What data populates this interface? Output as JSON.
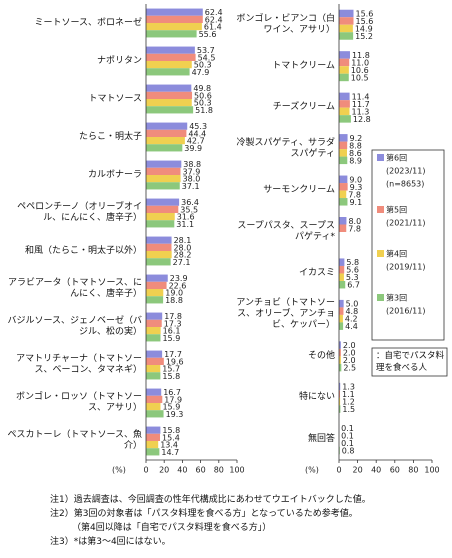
{
  "chart_data": [
    {
      "type": "bar",
      "orientation": "horizontal",
      "xlabel": "(%)",
      "xlim": [
        0,
        100
      ],
      "xticks": [
        0,
        20,
        40,
        60,
        80,
        100
      ],
      "categories": [
        "ミートソース、ボロネーゼ",
        "ナポリタン",
        "トマトソース",
        "たらこ・明太子",
        "カルボナーラ",
        "ペペロンチーノ（オリーブオイル、にんにく、唐辛子）",
        "和風（たらこ・明太子以外）",
        "アラビアータ（トマトソース、にんにく、唐辛子）",
        "バジルソース、ジェノベーゼ（バジル、松の実）",
        "アマトリチャーナ（トマトソース、ベーコン、タマネギ）",
        "ボンゴレ・ロッソ（トマトソース、アサリ）",
        "ペスカトーレ（トマトソース、魚介）"
      ],
      "series": [
        {
          "color": "#8c8cdc",
          "values": [
            62.4,
            53.7,
            49.8,
            45.3,
            38.8,
            36.4,
            28.1,
            23.9,
            17.8,
            17.7,
            16.7,
            15.8
          ],
          "value_labels": [
            "62.4",
            "53.7",
            "49.8",
            "45.3",
            "38.8",
            "36.4",
            "28.1",
            "23.9",
            "17.8",
            "17.7",
            "16.7",
            "15.8"
          ]
        },
        {
          "color": "#f08c7c",
          "values": [
            62.4,
            54.5,
            50.6,
            44.4,
            37.9,
            35.5,
            28.0,
            22.6,
            17.3,
            19.6,
            17.9,
            15.4
          ],
          "value_labels": [
            "62.4",
            "54.5",
            "50.6",
            "44.4",
            "37.9",
            "35.5",
            "28.0",
            "22.6",
            "17.3",
            "19.6",
            "17.9",
            "15.4"
          ]
        },
        {
          "color": "#f0d050",
          "values": [
            61.4,
            50.3,
            50.3,
            42.7,
            38.0,
            31.6,
            28.2,
            19.0,
            16.1,
            15.7,
            15.9,
            13.4
          ],
          "value_labels": [
            "61.4",
            "50.3",
            "50.3",
            "42.7",
            "38.0",
            "31.6",
            "28.2",
            "19.0",
            "16.1",
            "15.7",
            "15.9",
            "13.4"
          ]
        },
        {
          "color": "#8cc87c",
          "values": [
            55.6,
            47.9,
            51.8,
            39.9,
            37.1,
            31.1,
            27.1,
            18.8,
            15.9,
            15.8,
            19.3,
            14.7
          ],
          "value_labels": [
            "55.6",
            "47.9",
            "51.8",
            "39.9",
            "37.1",
            "31.1",
            "27.1",
            "18.8",
            "15.9",
            "15.8",
            "19.3",
            "14.7"
          ]
        }
      ]
    },
    {
      "type": "bar",
      "orientation": "horizontal",
      "xlabel": "(%)",
      "xlim": [
        0,
        100
      ],
      "xticks": [
        0,
        20,
        40,
        60,
        80,
        100
      ],
      "categories": [
        "ボンゴレ・ビアンコ（白ワイン、アサリ）",
        "トマトクリーム",
        "チーズクリーム",
        "冷製スパゲティ、サラダスパゲティ",
        "サーモンクリーム",
        "スープパスタ、スープスパゲティ*",
        "イカスミ",
        "アンチョビ（トマトソース、オリーブ、アンチョビ、ケッパー）",
        "その他",
        "特にない",
        "無回答"
      ],
      "series": [
        {
          "name": "第6回",
          "period": "(2023/11)",
          "n": "(n=8653)",
          "color": "#8c8cdc",
          "values": [
            15.6,
            11.8,
            11.4,
            9.2,
            9.0,
            8.0,
            5.8,
            5.0,
            2.0,
            1.3,
            0.1
          ],
          "value_labels": [
            "15.6",
            "11.8",
            "11.4",
            "9.2",
            "9.0",
            "8.0",
            "5.8",
            "5.0",
            "2.0",
            "1.3",
            "0.1"
          ]
        },
        {
          "name": "第5回",
          "period": "(2021/11)",
          "color": "#f08c7c",
          "values": [
            15.6,
            11.0,
            11.7,
            8.8,
            9.3,
            7.8,
            5.6,
            4.8,
            2.0,
            1.1,
            0.1
          ],
          "value_labels": [
            "15.6",
            "11.0",
            "11.7",
            "8.8",
            "9.3",
            "7.8",
            "5.6",
            "4.8",
            "2.0",
            "1.1",
            "0.1"
          ]
        },
        {
          "name": "第4回",
          "period": "(2019/11)",
          "color": "#f0d050",
          "values": [
            14.9,
            10.6,
            11.3,
            8.6,
            7.8,
            null,
            5.3,
            4.2,
            2.0,
            1.2,
            0.1
          ],
          "value_labels": [
            "14.9",
            "10.6",
            "11.3",
            "8.6",
            "7.8",
            null,
            "5.3",
            "4.2",
            "2.0",
            "1.2",
            "0.1"
          ]
        },
        {
          "name": "第3回",
          "period": "(2016/11)",
          "color": "#8cc87c",
          "values": [
            15.2,
            10.5,
            12.8,
            8.9,
            9.1,
            null,
            6.7,
            4.4,
            2.5,
            1.5,
            0.8
          ],
          "value_labels": [
            "15.2",
            "10.5",
            "12.8",
            "8.9",
            "9.1",
            null,
            "6.7",
            "4.4",
            "2.5",
            "1.5",
            "0.8"
          ]
        }
      ]
    }
  ],
  "note_box": "：自宅でパスタ料理を食べる人",
  "footnotes": [
    "注1）過去調査は、今回調査の性年代構成比にあわせてウエイトバックした値。",
    "注2）第3回の対象者は「パスタ料理を食べる方」となっているため参考値。",
    "（第4回以降は「自宅でパスタ料理を食べる方」）",
    "注3）*は第3～4回にはない。"
  ]
}
